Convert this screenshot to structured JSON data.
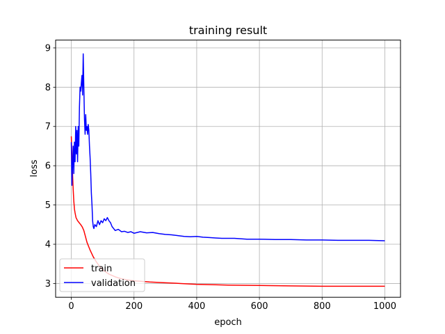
{
  "chart_data": {
    "type": "line",
    "title": "training result",
    "xlabel": "epoch",
    "ylabel": "loss",
    "xlim": [
      -50,
      1050
    ],
    "ylim": [
      2.65,
      9.2
    ],
    "xticks": [
      0,
      200,
      400,
      600,
      800,
      1000
    ],
    "yticks": [
      3,
      4,
      5,
      6,
      7,
      8,
      9
    ],
    "grid": true,
    "legend_position": "lower-left",
    "series": [
      {
        "name": "train",
        "color": "#ff0000",
        "x": [
          0,
          2,
          4,
          6,
          8,
          10,
          12,
          15,
          20,
          25,
          30,
          35,
          40,
          45,
          50,
          60,
          70,
          80,
          90,
          100,
          120,
          140,
          160,
          180,
          200,
          250,
          300,
          350,
          400,
          450,
          500,
          600,
          700,
          800,
          900,
          1000
        ],
        "y": [
          6.75,
          6.2,
          5.8,
          5.4,
          5.1,
          4.9,
          4.8,
          4.68,
          4.6,
          4.55,
          4.5,
          4.44,
          4.35,
          4.2,
          4.05,
          3.85,
          3.68,
          3.55,
          3.44,
          3.35,
          3.24,
          3.17,
          3.12,
          3.09,
          3.07,
          3.04,
          3.02,
          3.0,
          2.98,
          2.97,
          2.96,
          2.95,
          2.94,
          2.93,
          2.93,
          2.93
        ]
      },
      {
        "name": "validation",
        "color": "#0000ff",
        "x": [
          0,
          2,
          4,
          6,
          8,
          10,
          12,
          14,
          16,
          18,
          20,
          22,
          24,
          26,
          28,
          30,
          32,
          34,
          36,
          38,
          40,
          42,
          44,
          46,
          48,
          50,
          52,
          54,
          56,
          58,
          60,
          62,
          64,
          66,
          68,
          70,
          72,
          75,
          80,
          85,
          90,
          95,
          100,
          105,
          110,
          115,
          120,
          125,
          130,
          135,
          140,
          150,
          160,
          170,
          180,
          190,
          200,
          220,
          240,
          260,
          280,
          300,
          320,
          340,
          360,
          380,
          400,
          420,
          440,
          460,
          480,
          500,
          520,
          540,
          560,
          580,
          600,
          650,
          700,
          750,
          800,
          850,
          900,
          950,
          1000
        ],
        "y": [
          6.6,
          5.5,
          6.0,
          6.5,
          5.8,
          6.6,
          6.1,
          7.0,
          6.3,
          6.9,
          6.1,
          7.0,
          6.5,
          7.5,
          8.0,
          7.9,
          8.1,
          8.3,
          7.8,
          8.85,
          8.0,
          7.2,
          6.8,
          7.3,
          6.9,
          7.0,
          6.8,
          7.05,
          6.9,
          6.5,
          6.2,
          5.8,
          5.3,
          5.0,
          4.6,
          4.45,
          4.4,
          4.5,
          4.45,
          4.6,
          4.5,
          4.6,
          4.55,
          4.65,
          4.6,
          4.68,
          4.6,
          4.55,
          4.45,
          4.4,
          4.35,
          4.38,
          4.32,
          4.33,
          4.3,
          4.32,
          4.28,
          4.32,
          4.29,
          4.3,
          4.27,
          4.25,
          4.24,
          4.22,
          4.2,
          4.19,
          4.2,
          4.18,
          4.17,
          4.16,
          4.15,
          4.15,
          4.15,
          4.14,
          4.13,
          4.13,
          4.13,
          4.12,
          4.12,
          4.11,
          4.11,
          4.1,
          4.1,
          4.1,
          4.09
        ]
      }
    ]
  }
}
